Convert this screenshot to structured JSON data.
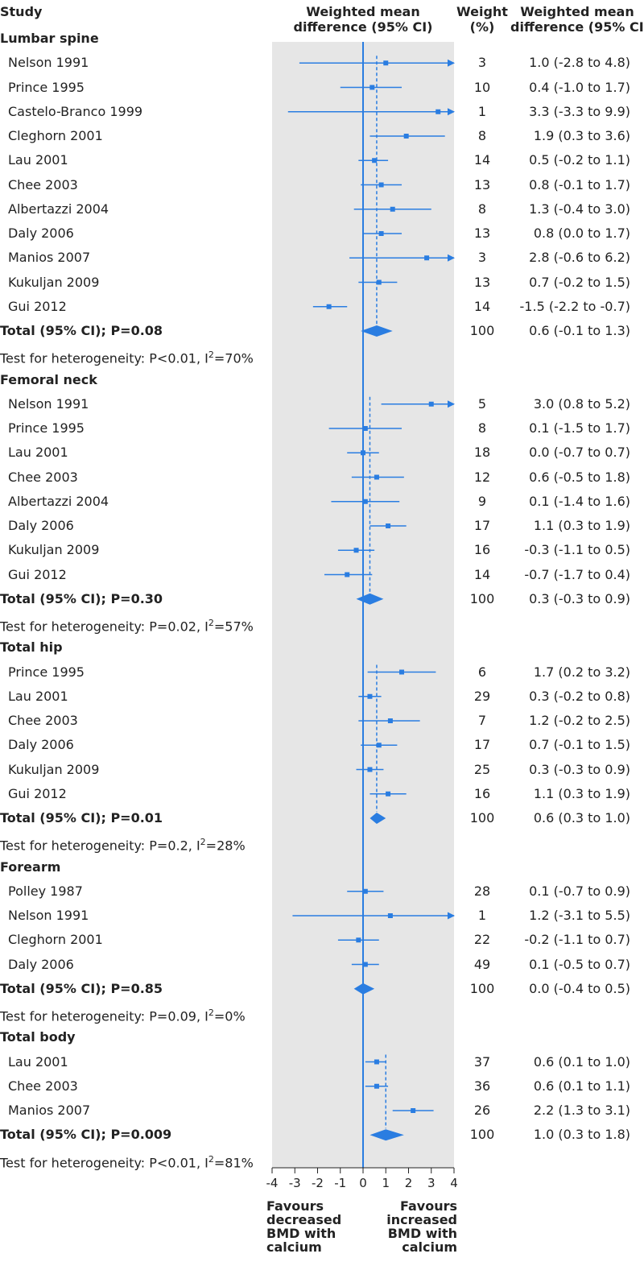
{
  "headers": {
    "study": "Study",
    "wmd_line1": "Weighted mean",
    "wmd_line2": "difference (95% CI)",
    "weight_line1": "Weight",
    "weight_line2": "(%)",
    "est_line1": "Weighted mean",
    "est_line2": "difference (95% CI)"
  },
  "footer": {
    "left": [
      "Favours",
      "decreased",
      "BMD with",
      "calcium"
    ],
    "right": [
      "Favours",
      "increased",
      "BMD with",
      "calcium"
    ]
  },
  "colors": {
    "accent": "#2a7de1",
    "panel": "#e6e6e6"
  },
  "chart_data": {
    "type": "forest",
    "xlim": [
      -4,
      4
    ],
    "ticks": [
      -4,
      -3,
      -2,
      -1,
      0,
      1,
      2,
      3,
      4
    ],
    "rows": [
      {
        "kind": "group",
        "label": "Lumbar spine"
      },
      {
        "kind": "study",
        "label": "Nelson 1991",
        "mean": 1.0,
        "lo": -2.8,
        "hi": 4.8,
        "weight": "3",
        "ci_text": "1.0 (-2.8 to 4.8)"
      },
      {
        "kind": "study",
        "label": "Prince 1995",
        "mean": 0.4,
        "lo": -1.0,
        "hi": 1.7,
        "weight": "10",
        "ci_text": "0.4 (-1.0 to 1.7)"
      },
      {
        "kind": "study",
        "label": "Castelo-Branco 1999",
        "mean": 3.3,
        "lo": -3.3,
        "hi": 9.9,
        "weight": "1",
        "ci_text": "3.3 (-3.3 to 9.9)"
      },
      {
        "kind": "study",
        "label": "Cleghorn 2001",
        "mean": 1.9,
        "lo": 0.3,
        "hi": 3.6,
        "weight": "8",
        "ci_text": "1.9 (0.3 to 3.6)"
      },
      {
        "kind": "study",
        "label": "Lau 2001",
        "mean": 0.5,
        "lo": -0.2,
        "hi": 1.1,
        "weight": "14",
        "ci_text": "0.5 (-0.2 to 1.1)"
      },
      {
        "kind": "study",
        "label": "Chee 2003",
        "mean": 0.8,
        "lo": -0.1,
        "hi": 1.7,
        "weight": "13",
        "ci_text": "0.8 (-0.1 to 1.7)"
      },
      {
        "kind": "study",
        "label": "Albertazzi 2004",
        "mean": 1.3,
        "lo": -0.4,
        "hi": 3.0,
        "weight": "8",
        "ci_text": "1.3 (-0.4 to 3.0)"
      },
      {
        "kind": "study",
        "label": "Daly 2006",
        "mean": 0.8,
        "lo": 0.0,
        "hi": 1.7,
        "weight": "13",
        "ci_text": "0.8 (0.0 to 1.7)"
      },
      {
        "kind": "study",
        "label": "Manios 2007",
        "mean": 2.8,
        "lo": -0.6,
        "hi": 6.2,
        "weight": "3",
        "ci_text": "2.8 (-0.6 to 6.2)"
      },
      {
        "kind": "study",
        "label": "Kukuljan 2009",
        "mean": 0.7,
        "lo": -0.2,
        "hi": 1.5,
        "weight": "13",
        "ci_text": "0.7 (-0.2 to 1.5)"
      },
      {
        "kind": "study",
        "label": "Gui 2012",
        "mean": -1.5,
        "lo": -2.2,
        "hi": -0.7,
        "weight": "14",
        "ci_text": "-1.5 (-2.2 to -0.7)"
      },
      {
        "kind": "total",
        "label": "Total (95% CI); P=0.08",
        "mean": 0.6,
        "lo": -0.1,
        "hi": 1.3,
        "weight": "100",
        "ci_text": "0.6 (-0.1 to 1.3)"
      },
      {
        "kind": "het",
        "pre": "Test for heterogeneity: P<0.01, I",
        "sup": "2",
        "post": "=70%"
      },
      {
        "kind": "group",
        "label": "Femoral neck"
      },
      {
        "kind": "study",
        "label": "Nelson 1991",
        "mean": 3.0,
        "lo": 0.8,
        "hi": 5.2,
        "weight": "5",
        "ci_text": "3.0 (0.8 to 5.2)"
      },
      {
        "kind": "study",
        "label": "Prince 1995",
        "mean": 0.1,
        "lo": -1.5,
        "hi": 1.7,
        "weight": "8",
        "ci_text": "0.1 (-1.5 to 1.7)"
      },
      {
        "kind": "study",
        "label": "Lau 2001",
        "mean": 0.0,
        "lo": -0.7,
        "hi": 0.7,
        "weight": "18",
        "ci_text": "0.0 (-0.7 to 0.7)"
      },
      {
        "kind": "study",
        "label": "Chee 2003",
        "mean": 0.6,
        "lo": -0.5,
        "hi": 1.8,
        "weight": "12",
        "ci_text": "0.6 (-0.5 to 1.8)"
      },
      {
        "kind": "study",
        "label": "Albertazzi 2004",
        "mean": 0.1,
        "lo": -1.4,
        "hi": 1.6,
        "weight": "9",
        "ci_text": "0.1 (-1.4 to 1.6)"
      },
      {
        "kind": "study",
        "label": "Daly 2006",
        "mean": 1.1,
        "lo": 0.3,
        "hi": 1.9,
        "weight": "17",
        "ci_text": "1.1 (0.3 to 1.9)"
      },
      {
        "kind": "study",
        "label": "Kukuljan 2009",
        "mean": -0.3,
        "lo": -1.1,
        "hi": 0.5,
        "weight": "16",
        "ci_text": "-0.3 (-1.1 to 0.5)"
      },
      {
        "kind": "study",
        "label": "Gui 2012",
        "mean": -0.7,
        "lo": -1.7,
        "hi": 0.4,
        "weight": "14",
        "ci_text": "-0.7 (-1.7 to 0.4)"
      },
      {
        "kind": "total",
        "label": "Total (95% CI); P=0.30",
        "mean": 0.3,
        "lo": -0.3,
        "hi": 0.9,
        "weight": "100",
        "ci_text": "0.3 (-0.3 to 0.9)"
      },
      {
        "kind": "het",
        "pre": "Test for heterogeneity: P=0.02, I",
        "sup": "2",
        "post": "=57%"
      },
      {
        "kind": "group",
        "label": "Total hip"
      },
      {
        "kind": "study",
        "label": "Prince 1995",
        "mean": 1.7,
        "lo": 0.2,
        "hi": 3.2,
        "weight": "6",
        "ci_text": "1.7 (0.2 to 3.2)"
      },
      {
        "kind": "study",
        "label": "Lau 2001",
        "mean": 0.3,
        "lo": -0.2,
        "hi": 0.8,
        "weight": "29",
        "ci_text": "0.3 (-0.2 to 0.8)"
      },
      {
        "kind": "study",
        "label": "Chee 2003",
        "mean": 1.2,
        "lo": -0.2,
        "hi": 2.5,
        "weight": "7",
        "ci_text": "1.2 (-0.2 to 2.5)"
      },
      {
        "kind": "study",
        "label": "Daly 2006",
        "mean": 0.7,
        "lo": -0.1,
        "hi": 1.5,
        "weight": "17",
        "ci_text": "0.7 (-0.1 to 1.5)"
      },
      {
        "kind": "study",
        "label": "Kukuljan 2009",
        "mean": 0.3,
        "lo": -0.3,
        "hi": 0.9,
        "weight": "25",
        "ci_text": "0.3 (-0.3 to 0.9)"
      },
      {
        "kind": "study",
        "label": "Gui 2012",
        "mean": 1.1,
        "lo": 0.3,
        "hi": 1.9,
        "weight": "16",
        "ci_text": "1.1 (0.3 to 1.9)"
      },
      {
        "kind": "total",
        "label": "Total (95% CI); P=0.01",
        "mean": 0.6,
        "lo": 0.3,
        "hi": 1.0,
        "weight": "100",
        "ci_text": "0.6 (0.3 to 1.0)"
      },
      {
        "kind": "het",
        "pre": "Test for heterogeneity: P=0.2, I",
        "sup": "2",
        "post": "=28%"
      },
      {
        "kind": "group",
        "label": "Forearm"
      },
      {
        "kind": "study",
        "label": "Polley 1987",
        "mean": 0.1,
        "lo": -0.7,
        "hi": 0.9,
        "weight": "28",
        "ci_text": "0.1 (-0.7 to 0.9)"
      },
      {
        "kind": "study",
        "label": "Nelson 1991",
        "mean": 1.2,
        "lo": -3.1,
        "hi": 5.5,
        "weight": "1",
        "ci_text": "1.2 (-3.1 to 5.5)"
      },
      {
        "kind": "study",
        "label": "Cleghorn 2001",
        "mean": -0.2,
        "lo": -1.1,
        "hi": 0.7,
        "weight": "22",
        "ci_text": "-0.2 (-1.1 to 0.7)"
      },
      {
        "kind": "study",
        "label": "Daly 2006",
        "mean": 0.1,
        "lo": -0.5,
        "hi": 0.7,
        "weight": "49",
        "ci_text": "0.1 (-0.5 to 0.7)"
      },
      {
        "kind": "total",
        "label": "Total (95% CI); P=0.85",
        "mean": 0.0,
        "lo": -0.4,
        "hi": 0.5,
        "weight": "100",
        "ci_text": "0.0 (-0.4 to 0.5)"
      },
      {
        "kind": "het",
        "pre": "Test for heterogeneity: P=0.09, I",
        "sup": "2",
        "post": "=0%"
      },
      {
        "kind": "group",
        "label": "Total body"
      },
      {
        "kind": "study",
        "label": "Lau 2001",
        "mean": 0.6,
        "lo": 0.1,
        "hi": 1.0,
        "weight": "37",
        "ci_text": "0.6 (0.1 to 1.0)"
      },
      {
        "kind": "study",
        "label": "Chee 2003",
        "mean": 0.6,
        "lo": 0.1,
        "hi": 1.1,
        "weight": "36",
        "ci_text": "0.6 (0.1 to 1.1)"
      },
      {
        "kind": "study",
        "label": "Manios 2007",
        "mean": 2.2,
        "lo": 1.3,
        "hi": 3.1,
        "weight": "26",
        "ci_text": "2.2 (1.3 to 3.1)"
      },
      {
        "kind": "total",
        "label": "Total (95% CI); P=0.009",
        "mean": 1.0,
        "lo": 0.3,
        "hi": 1.8,
        "weight": "100",
        "ci_text": "1.0 (0.3 to 1.8)"
      },
      {
        "kind": "het",
        "pre": "Test for heterogeneity: P<0.01, I",
        "sup": "2",
        "post": "=81%"
      }
    ]
  }
}
